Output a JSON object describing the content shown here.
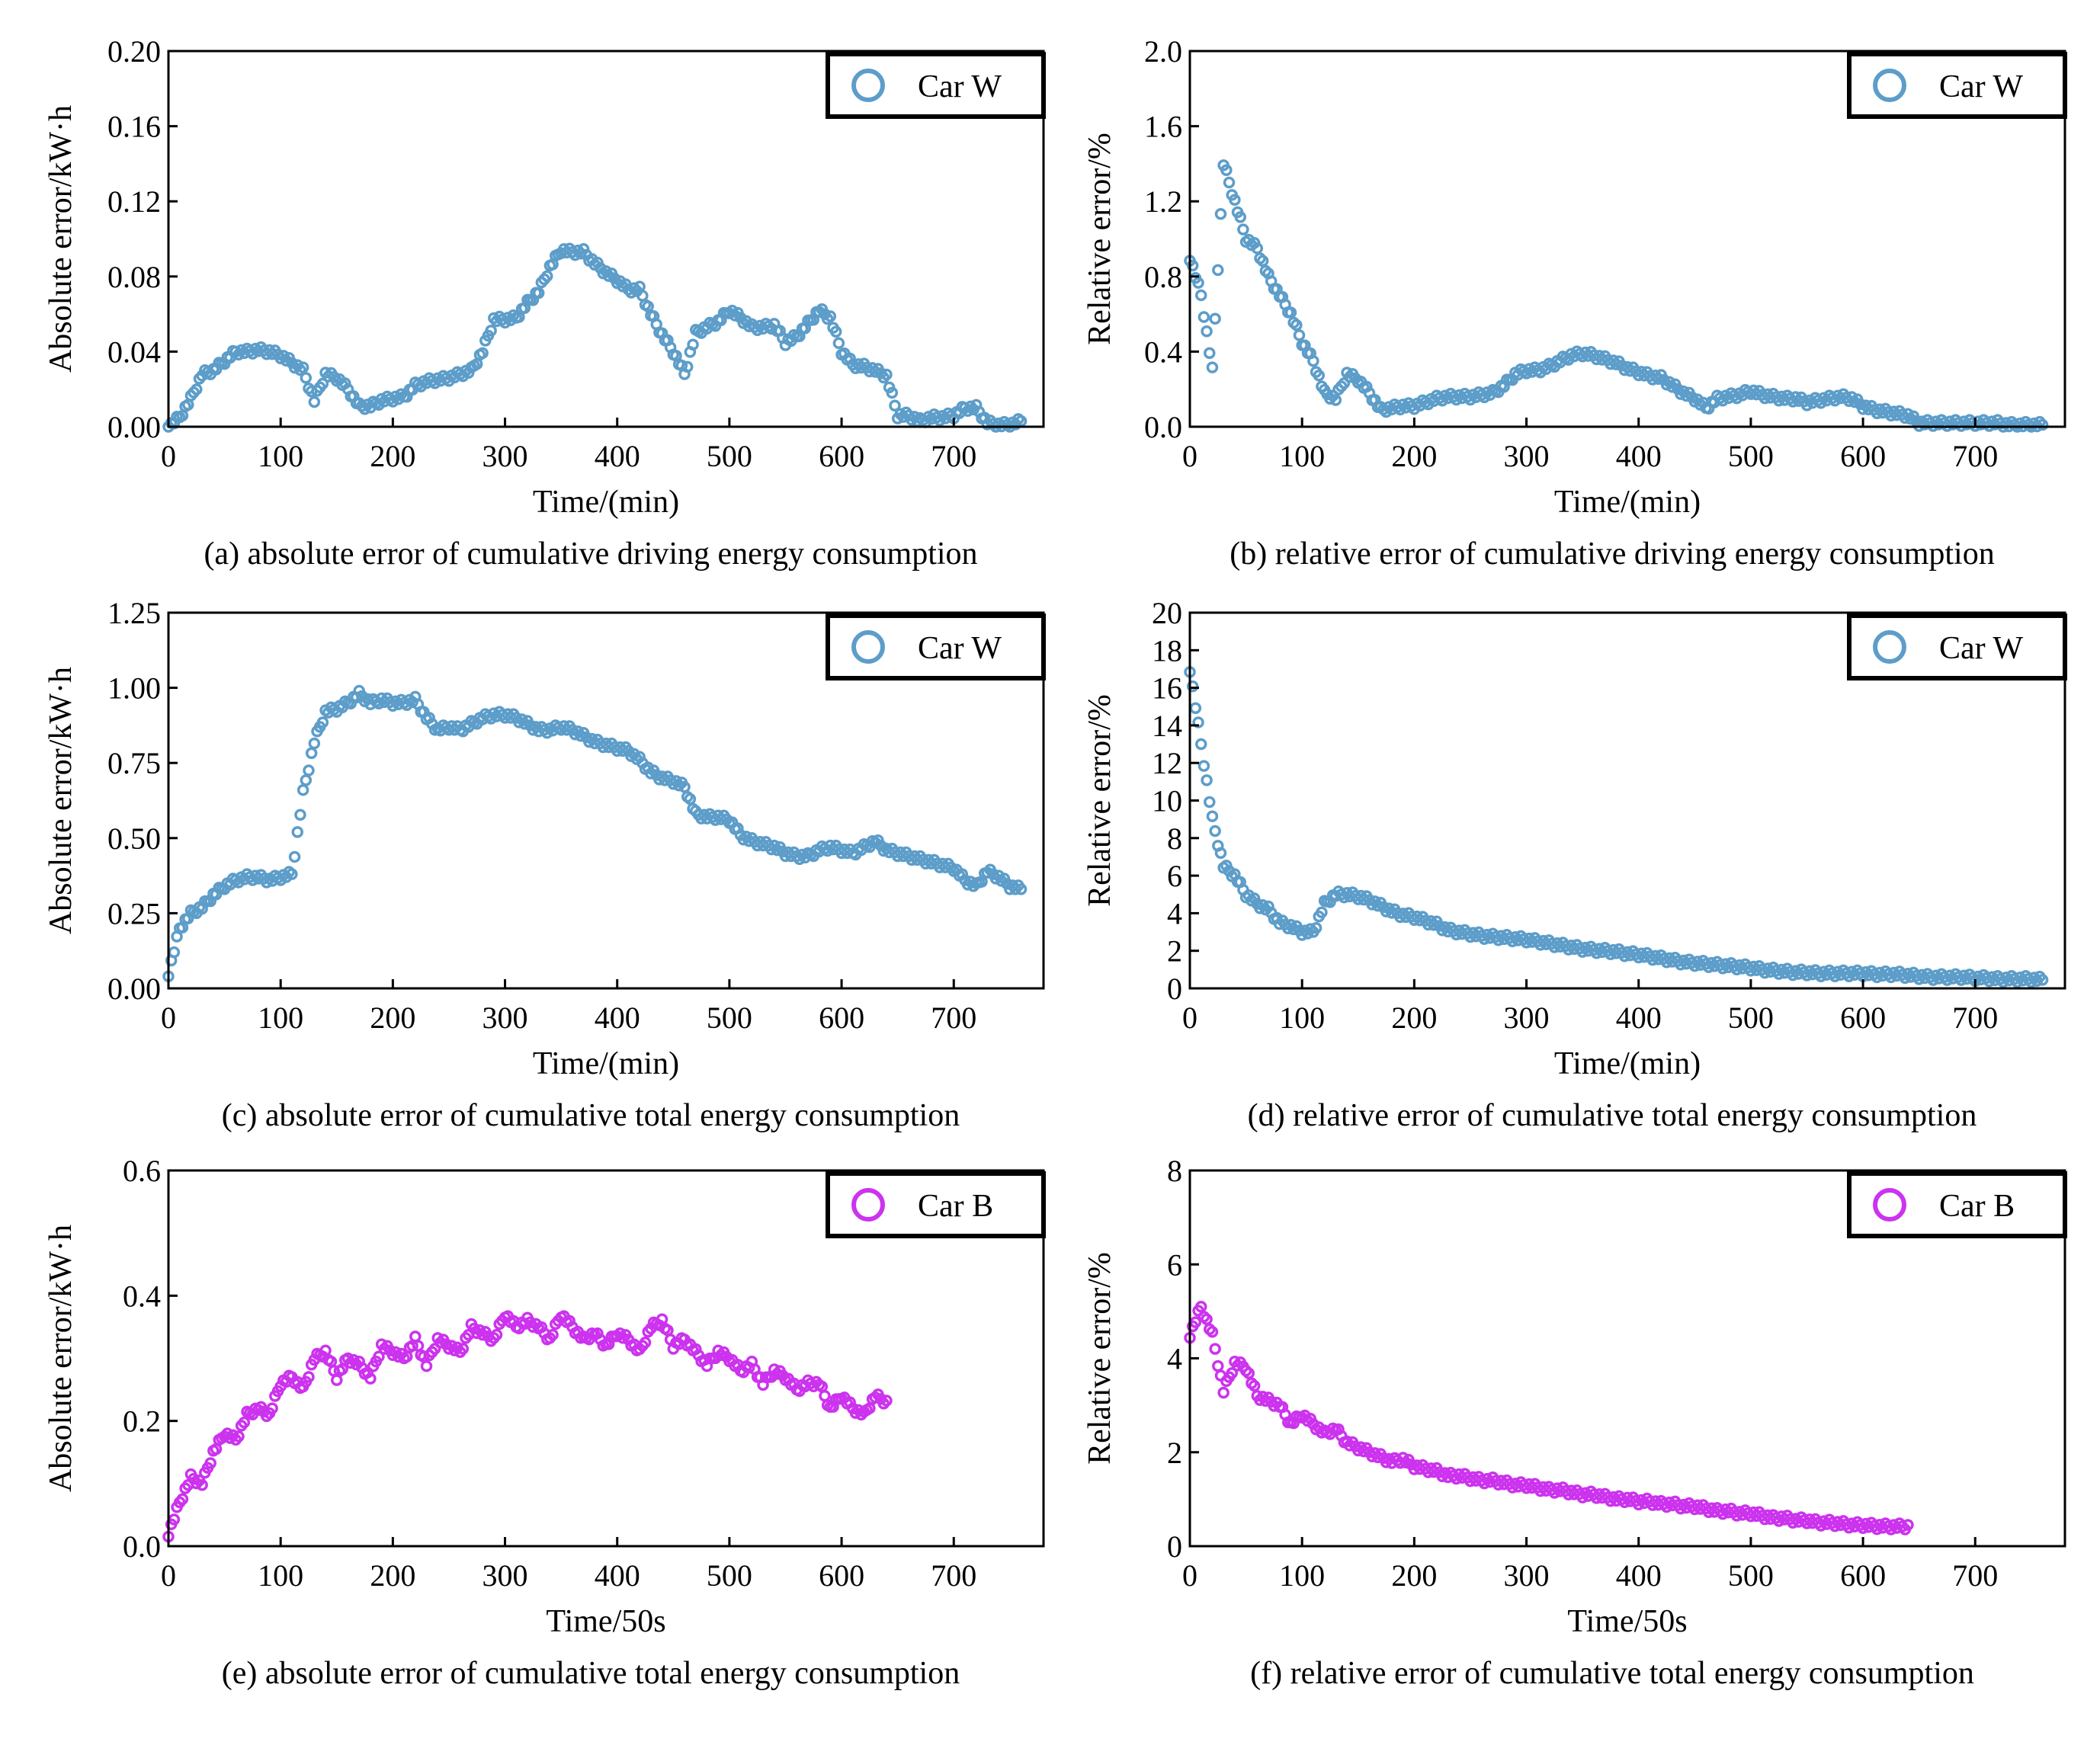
{
  "colors": {
    "car_w": "#5d9dc9",
    "car_b": "#cc33ee"
  },
  "chart_data": [
    {
      "type": "scatter",
      "id": "a",
      "caption": "(a) absolute error of cumulative driving energy consumption",
      "xlabel": "Time/(min)",
      "ylabel": "Absolute error/kW·h",
      "xlim": [
        0,
        780
      ],
      "ylim": [
        0,
        0.2
      ],
      "xticks": [
        "0",
        "100",
        "200",
        "300",
        "400",
        "500",
        "600",
        "700"
      ],
      "yticks": [
        "0.00",
        "0.04",
        "0.08",
        "0.12",
        "0.16",
        "0.20"
      ],
      "legend": {
        "label": "Car W",
        "placement": "top-right"
      },
      "series_color": "car_w",
      "x_step": 10,
      "values": [
        0.0,
        0.005,
        0.015,
        0.028,
        0.03,
        0.035,
        0.04,
        0.04,
        0.041,
        0.04,
        0.038,
        0.034,
        0.03,
        0.014,
        0.028,
        0.026,
        0.02,
        0.011,
        0.011,
        0.014,
        0.015,
        0.016,
        0.022,
        0.024,
        0.025,
        0.026,
        0.028,
        0.03,
        0.04,
        0.057,
        0.057,
        0.058,
        0.066,
        0.072,
        0.085,
        0.094,
        0.093,
        0.093,
        0.087,
        0.082,
        0.078,
        0.073,
        0.073,
        0.06,
        0.049,
        0.04,
        0.028,
        0.05,
        0.053,
        0.056,
        0.062,
        0.058,
        0.053,
        0.053,
        0.054,
        0.045,
        0.048,
        0.055,
        0.062,
        0.058,
        0.04,
        0.033,
        0.032,
        0.03,
        0.027,
        0.006,
        0.006,
        0.003,
        0.005,
        0.005,
        0.006,
        0.01,
        0.01,
        0.002,
        0.001,
        0.001,
        0.003
      ]
    },
    {
      "type": "scatter",
      "id": "b",
      "caption": "(b) relative error of cumulative driving energy consumption",
      "xlabel": "Time/(min)",
      "ylabel": "Relative error/%",
      "xlim": [
        0,
        780
      ],
      "ylim": [
        0,
        2.0
      ],
      "xticks": [
        "0",
        "100",
        "200",
        "300",
        "400",
        "500",
        "600",
        "700"
      ],
      "yticks": [
        "0.0",
        "0.4",
        "0.8",
        "1.2",
        "1.6",
        "2.0"
      ],
      "legend": {
        "label": "Car W",
        "placement": "top-right"
      },
      "series_color": "car_w",
      "x_step": 10,
      "values": [
        0.9,
        0.7,
        0.3,
        1.4,
        1.2,
        1.0,
        0.95,
        0.8,
        0.7,
        0.6,
        0.45,
        0.35,
        0.18,
        0.15,
        0.28,
        0.25,
        0.18,
        0.09,
        0.1,
        0.11,
        0.11,
        0.13,
        0.15,
        0.16,
        0.16,
        0.16,
        0.17,
        0.18,
        0.22,
        0.28,
        0.3,
        0.3,
        0.32,
        0.35,
        0.38,
        0.39,
        0.38,
        0.36,
        0.34,
        0.31,
        0.29,
        0.27,
        0.26,
        0.22,
        0.18,
        0.15,
        0.1,
        0.15,
        0.16,
        0.17,
        0.19,
        0.17,
        0.16,
        0.15,
        0.15,
        0.13,
        0.14,
        0.15,
        0.16,
        0.15,
        0.11,
        0.09,
        0.08,
        0.07,
        0.06,
        0.02,
        0.02,
        0.02,
        0.02,
        0.02,
        0.02,
        0.02,
        0.02,
        0.01,
        0.01,
        0.01,
        0.01
      ]
    },
    {
      "type": "scatter",
      "id": "c",
      "caption": "(c) absolute error of cumulative total energy consumption",
      "xlabel": "Time/(min)",
      "ylabel": "Absolute error/kW·h",
      "xlim": [
        0,
        780
      ],
      "ylim": [
        0,
        1.25
      ],
      "xticks": [
        "0",
        "100",
        "200",
        "300",
        "400",
        "500",
        "600",
        "700"
      ],
      "yticks": [
        "0.00",
        "0.25",
        "0.50",
        "0.75",
        "1.00",
        "1.25"
      ],
      "legend": {
        "label": "Car W",
        "placement": "top-right"
      },
      "series_color": "car_w",
      "x_step": 10,
      "values": [
        0.05,
        0.2,
        0.25,
        0.27,
        0.31,
        0.34,
        0.36,
        0.37,
        0.37,
        0.36,
        0.37,
        0.38,
        0.65,
        0.82,
        0.92,
        0.93,
        0.95,
        0.98,
        0.95,
        0.96,
        0.95,
        0.95,
        0.96,
        0.9,
        0.86,
        0.87,
        0.86,
        0.88,
        0.9,
        0.91,
        0.91,
        0.9,
        0.88,
        0.86,
        0.86,
        0.87,
        0.86,
        0.84,
        0.82,
        0.81,
        0.8,
        0.79,
        0.76,
        0.72,
        0.7,
        0.69,
        0.67,
        0.58,
        0.57,
        0.57,
        0.56,
        0.51,
        0.49,
        0.48,
        0.47,
        0.45,
        0.44,
        0.44,
        0.46,
        0.47,
        0.46,
        0.45,
        0.47,
        0.49,
        0.46,
        0.45,
        0.44,
        0.43,
        0.42,
        0.41,
        0.4,
        0.36,
        0.34,
        0.39,
        0.37,
        0.34,
        0.33
      ]
    },
    {
      "type": "scatter",
      "id": "d",
      "caption": "(d) relative error of cumulative total energy consumption",
      "xlabel": "Time/(min)",
      "ylabel": "Relative error/%",
      "xlim": [
        0,
        780
      ],
      "ylim": [
        0,
        20
      ],
      "xticks": [
        "0",
        "100",
        "200",
        "300",
        "400",
        "500",
        "600",
        "700"
      ],
      "yticks": [
        "0",
        "2",
        "4",
        "6",
        "8",
        "10",
        "12",
        "14",
        "16",
        "18",
        "20"
      ],
      "legend": {
        "label": "Car W",
        "placement": "top-right"
      },
      "series_color": "car_w",
      "x_step": 10,
      "values": [
        17,
        13,
        9,
        6.5,
        6,
        5,
        4.5,
        4.2,
        3.5,
        3.3,
        3,
        3,
        4.5,
        5,
        5,
        4.9,
        4.7,
        4.4,
        4.1,
        3.9,
        3.8,
        3.6,
        3.4,
        3.1,
        3,
        2.9,
        2.8,
        2.75,
        2.7,
        2.65,
        2.6,
        2.5,
        2.4,
        2.3,
        2.2,
        2.1,
        2.05,
        2.0,
        1.95,
        1.85,
        1.8,
        1.7,
        1.6,
        1.5,
        1.4,
        1.35,
        1.3,
        1.25,
        1.2,
        1.15,
        1.1,
        1.0,
        0.95,
        0.9,
        0.85,
        0.85,
        0.8,
        0.8,
        0.8,
        0.8,
        0.8,
        0.75,
        0.75,
        0.75,
        0.7,
        0.65,
        0.6,
        0.6,
        0.6,
        0.6,
        0.55,
        0.55,
        0.5,
        0.5,
        0.5,
        0.5,
        0.45
      ]
    },
    {
      "type": "scatter",
      "id": "e",
      "caption": "(e) absolute error of cumulative total energy consumption",
      "xlabel": "Time/50s",
      "ylabel": "Absolute error/kW·h",
      "xlim": [
        0,
        780
      ],
      "ylim": [
        0,
        0.6
      ],
      "xticks": [
        "0",
        "100",
        "200",
        "300",
        "400",
        "500",
        "600",
        "700"
      ],
      "yticks": [
        "0.0",
        "0.2",
        "0.4",
        "0.6"
      ],
      "legend": {
        "label": "Car B",
        "placement": "top-right"
      },
      "series_color": "car_b",
      "x_step": 10,
      "values": [
        0.02,
        0.07,
        0.11,
        0.1,
        0.15,
        0.18,
        0.17,
        0.21,
        0.22,
        0.21,
        0.26,
        0.27,
        0.25,
        0.3,
        0.31,
        0.27,
        0.3,
        0.29,
        0.27,
        0.32,
        0.31,
        0.3,
        0.33,
        0.29,
        0.33,
        0.32,
        0.31,
        0.35,
        0.34,
        0.33,
        0.37,
        0.35,
        0.36,
        0.35,
        0.33,
        0.37,
        0.35,
        0.33,
        0.34,
        0.32,
        0.34,
        0.33,
        0.31,
        0.35,
        0.36,
        0.32,
        0.33,
        0.31,
        0.29,
        0.31,
        0.3,
        0.28,
        0.29,
        0.26,
        0.28,
        0.27,
        0.25,
        0.26,
        0.26,
        0.22,
        0.24,
        0.22,
        0.21,
        0.24,
        0.23
      ]
    },
    {
      "type": "scatter",
      "id": "f",
      "caption": "(f) relative error of cumulative total energy consumption",
      "xlabel": "Time/50s",
      "ylabel": "Relative error/%",
      "xlim": [
        0,
        780
      ],
      "ylim": [
        0,
        8
      ],
      "xticks": [
        "0",
        "100",
        "200",
        "300",
        "400",
        "500",
        "600",
        "700"
      ],
      "yticks": [
        "0",
        "2",
        "4",
        "6",
        "8"
      ],
      "legend": {
        "label": "Car B",
        "placement": "top-right"
      },
      "series_color": "car_b",
      "x_step": 10,
      "values": [
        4.5,
        5.1,
        4.5,
        3.3,
        3.9,
        3.8,
        3.2,
        3.1,
        3.0,
        2.6,
        2.8,
        2.6,
        2.4,
        2.5,
        2.2,
        2.1,
        2.0,
        1.9,
        1.8,
        1.85,
        1.7,
        1.65,
        1.6,
        1.5,
        1.5,
        1.45,
        1.4,
        1.4,
        1.35,
        1.3,
        1.3,
        1.25,
        1.2,
        1.2,
        1.15,
        1.1,
        1.1,
        1.05,
        1.0,
        1.0,
        0.95,
        0.95,
        0.9,
        0.9,
        0.85,
        0.85,
        0.8,
        0.75,
        0.75,
        0.7,
        0.7,
        0.65,
        0.6,
        0.6,
        0.55,
        0.55,
        0.5,
        0.5,
        0.48,
        0.45,
        0.45,
        0.43,
        0.42,
        0.42,
        0.42
      ]
    }
  ]
}
